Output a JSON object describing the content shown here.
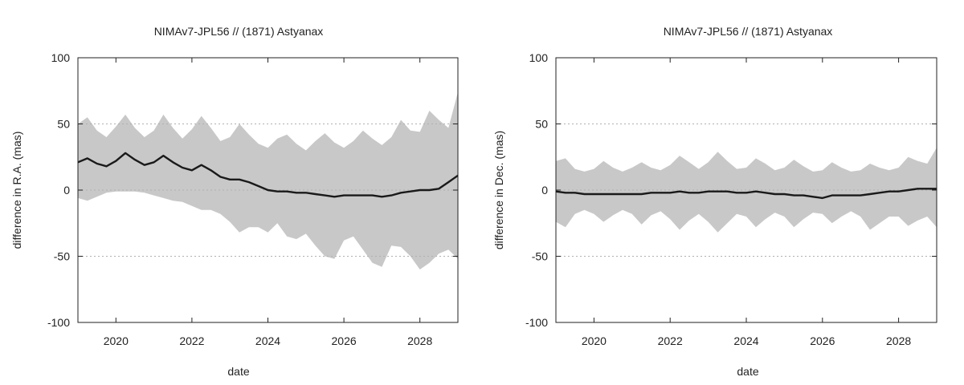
{
  "chart_data": [
    {
      "type": "line",
      "title": "NIMAv7-JPL56 // (1871) Astyanax",
      "xlabel": "date",
      "ylabel": "difference in R.A. (mas)",
      "xlim": [
        2019.0,
        2029.0
      ],
      "ylim": [
        -100,
        100
      ],
      "xticks": [
        2020,
        2022,
        2024,
        2026,
        2028
      ],
      "yticks": [
        -100,
        -50,
        0,
        50,
        100
      ],
      "grid": "horizontal-dotted",
      "colors": {
        "band": "#c8c8c8",
        "line": "#1a1a1a",
        "grid": "#b0b0b0"
      },
      "series": [
        {
          "role": "mean",
          "x": [
            2019.0,
            2019.25,
            2019.5,
            2019.75,
            2020.0,
            2020.25,
            2020.5,
            2020.75,
            2021.0,
            2021.25,
            2021.5,
            2021.75,
            2022.0,
            2022.25,
            2022.5,
            2022.75,
            2023.0,
            2023.25,
            2023.5,
            2023.75,
            2024.0,
            2024.25,
            2024.5,
            2024.75,
            2025.0,
            2025.25,
            2025.5,
            2025.75,
            2026.0,
            2026.25,
            2026.5,
            2026.75,
            2027.0,
            2027.25,
            2027.5,
            2027.75,
            2028.0,
            2028.25,
            2028.5,
            2028.75,
            2029.0
          ],
          "y": [
            21,
            24,
            20,
            18,
            22,
            28,
            23,
            19,
            21,
            26,
            21,
            17,
            15,
            19,
            15,
            10,
            8,
            8,
            6,
            3,
            0,
            -1,
            -1,
            -2,
            -2,
            -3,
            -4,
            -5,
            -4,
            -4,
            -4,
            -4,
            -5,
            -4,
            -2,
            -1,
            0,
            0,
            1,
            6,
            11
          ]
        },
        {
          "role": "upper-envelope",
          "x": [
            2019.0,
            2019.25,
            2019.5,
            2019.75,
            2020.0,
            2020.25,
            2020.5,
            2020.75,
            2021.0,
            2021.25,
            2021.5,
            2021.75,
            2022.0,
            2022.25,
            2022.5,
            2022.75,
            2023.0,
            2023.25,
            2023.5,
            2023.75,
            2024.0,
            2024.25,
            2024.5,
            2024.75,
            2025.0,
            2025.25,
            2025.5,
            2025.75,
            2026.0,
            2026.25,
            2026.5,
            2026.75,
            2027.0,
            2027.25,
            2027.5,
            2027.75,
            2028.0,
            2028.25,
            2028.5,
            2028.75,
            2029.0
          ],
          "y": [
            50,
            55,
            45,
            40,
            48,
            57,
            47,
            40,
            45,
            57,
            47,
            39,
            46,
            56,
            47,
            37,
            40,
            50,
            42,
            35,
            32,
            39,
            42,
            35,
            30,
            37,
            43,
            36,
            32,
            37,
            45,
            39,
            34,
            40,
            53,
            45,
            44,
            60,
            53,
            47,
            74
          ]
        },
        {
          "role": "lower-envelope",
          "x": [
            2019.0,
            2019.25,
            2019.5,
            2019.75,
            2020.0,
            2020.25,
            2020.5,
            2020.75,
            2021.0,
            2021.25,
            2021.5,
            2021.75,
            2022.0,
            2022.25,
            2022.5,
            2022.75,
            2023.0,
            2023.25,
            2023.5,
            2023.75,
            2024.0,
            2024.25,
            2024.5,
            2024.75,
            2025.0,
            2025.25,
            2025.5,
            2025.75,
            2026.0,
            2026.25,
            2026.5,
            2026.75,
            2027.0,
            2027.25,
            2027.5,
            2027.75,
            2028.0,
            2028.25,
            2028.5,
            2028.75,
            2029.0
          ],
          "y": [
            -6,
            -8,
            -5,
            -2,
            -1,
            -1,
            -1,
            -2,
            -4,
            -6,
            -8,
            -9,
            -12,
            -15,
            -15,
            -18,
            -24,
            -32,
            -28,
            -28,
            -32,
            -25,
            -35,
            -37,
            -33,
            -42,
            -50,
            -52,
            -38,
            -35,
            -45,
            -55,
            -58,
            -42,
            -43,
            -50,
            -60,
            -55,
            -48,
            -45,
            -52
          ]
        }
      ]
    },
    {
      "type": "line",
      "title": "NIMAv7-JPL56 // (1871) Astyanax",
      "xlabel": "date",
      "ylabel": "difference in Dec. (mas)",
      "xlim": [
        2019.0,
        2029.0
      ],
      "ylim": [
        -100,
        100
      ],
      "xticks": [
        2020,
        2022,
        2024,
        2026,
        2028
      ],
      "yticks": [
        -100,
        -50,
        0,
        50,
        100
      ],
      "grid": "horizontal-dotted",
      "colors": {
        "band": "#c8c8c8",
        "line": "#1a1a1a",
        "grid": "#b0b0b0"
      },
      "series": [
        {
          "role": "mean",
          "x": [
            2019.0,
            2019.25,
            2019.5,
            2019.75,
            2020.0,
            2020.25,
            2020.5,
            2020.75,
            2021.0,
            2021.25,
            2021.5,
            2021.75,
            2022.0,
            2022.25,
            2022.5,
            2022.75,
            2023.0,
            2023.25,
            2023.5,
            2023.75,
            2024.0,
            2024.25,
            2024.5,
            2024.75,
            2025.0,
            2025.25,
            2025.5,
            2025.75,
            2026.0,
            2026.25,
            2026.5,
            2026.75,
            2027.0,
            2027.25,
            2027.5,
            2027.75,
            2028.0,
            2028.25,
            2028.5,
            2028.75,
            2029.0
          ],
          "y": [
            -1,
            -2,
            -2,
            -3,
            -3,
            -3,
            -3,
            -3,
            -3,
            -3,
            -2,
            -2,
            -2,
            -1,
            -2,
            -2,
            -1,
            -1,
            -1,
            -2,
            -2,
            -1,
            -2,
            -3,
            -3,
            -4,
            -4,
            -5,
            -6,
            -4,
            -4,
            -4,
            -4,
            -3,
            -2,
            -1,
            -1,
            0,
            1,
            1,
            1
          ]
        },
        {
          "role": "upper-envelope",
          "x": [
            2019.0,
            2019.25,
            2019.5,
            2019.75,
            2020.0,
            2020.25,
            2020.5,
            2020.75,
            2021.0,
            2021.25,
            2021.5,
            2021.75,
            2022.0,
            2022.25,
            2022.5,
            2022.75,
            2023.0,
            2023.25,
            2023.5,
            2023.75,
            2024.0,
            2024.25,
            2024.5,
            2024.75,
            2025.0,
            2025.25,
            2025.5,
            2025.75,
            2026.0,
            2026.25,
            2026.5,
            2026.75,
            2027.0,
            2027.25,
            2027.5,
            2027.75,
            2028.0,
            2028.25,
            2028.5,
            2028.75,
            2029.0
          ],
          "y": [
            22,
            24,
            16,
            14,
            16,
            22,
            17,
            14,
            17,
            21,
            17,
            15,
            19,
            26,
            21,
            16,
            21,
            29,
            22,
            16,
            17,
            24,
            20,
            15,
            17,
            23,
            18,
            14,
            15,
            21,
            17,
            14,
            15,
            20,
            17,
            15,
            17,
            25,
            22,
            20,
            32
          ]
        },
        {
          "role": "lower-envelope",
          "x": [
            2019.0,
            2019.25,
            2019.5,
            2019.75,
            2020.0,
            2020.25,
            2020.5,
            2020.75,
            2021.0,
            2021.25,
            2021.5,
            2021.75,
            2022.0,
            2022.25,
            2022.5,
            2022.75,
            2023.0,
            2023.25,
            2023.5,
            2023.75,
            2024.0,
            2024.25,
            2024.5,
            2024.75,
            2025.0,
            2025.25,
            2025.5,
            2025.75,
            2026.0,
            2026.25,
            2026.5,
            2026.75,
            2027.0,
            2027.25,
            2027.5,
            2027.75,
            2028.0,
            2028.25,
            2028.5,
            2028.75,
            2029.0
          ],
          "y": [
            -24,
            -28,
            -18,
            -15,
            -18,
            -24,
            -19,
            -15,
            -18,
            -26,
            -19,
            -16,
            -22,
            -30,
            -23,
            -18,
            -24,
            -32,
            -25,
            -18,
            -20,
            -28,
            -22,
            -17,
            -20,
            -28,
            -22,
            -17,
            -18,
            -25,
            -20,
            -16,
            -20,
            -30,
            -25,
            -20,
            -20,
            -27,
            -23,
            -20,
            -28
          ]
        }
      ]
    }
  ]
}
